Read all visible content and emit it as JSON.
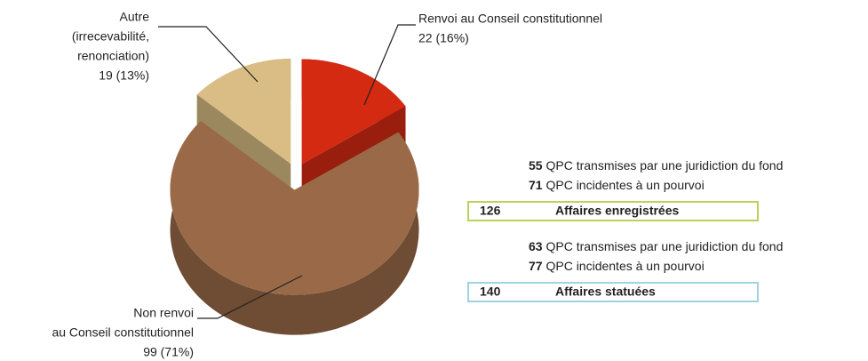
{
  "chart_data": {
    "type": "pie",
    "categories": [
      [
        "Renvoi au Conseil constitutionnel"
      ],
      [
        "Non renvoi",
        "au Conseil constitutionnel"
      ],
      [
        "Autre",
        "(irrecevabilité,",
        "renonciation)"
      ]
    ],
    "values": [
      22,
      99,
      19
    ],
    "value_labels": [
      "22 (16%)",
      "99 (71%)",
      "19 (13%)"
    ],
    "colors": [
      "#d42a12",
      "#9a6a48",
      "#d9bd84"
    ]
  },
  "summary": [
    {
      "items": [
        {
          "count": 55,
          "text": "QPC transmises par une juridiction du fond"
        },
        {
          "count": 71,
          "text": "QPC incidentes à un pourvoi"
        }
      ],
      "total": 126,
      "total_label": "Affaires enregistrées",
      "border": "#b9d35a"
    },
    {
      "items": [
        {
          "count": 63,
          "text": "QPC transmises par une juridiction du fond"
        },
        {
          "count": 77,
          "text": "QPC incidentes à un pourvoi"
        }
      ],
      "total": 140,
      "total_label": "Affaires statuées",
      "border": "#9fd3de"
    }
  ]
}
